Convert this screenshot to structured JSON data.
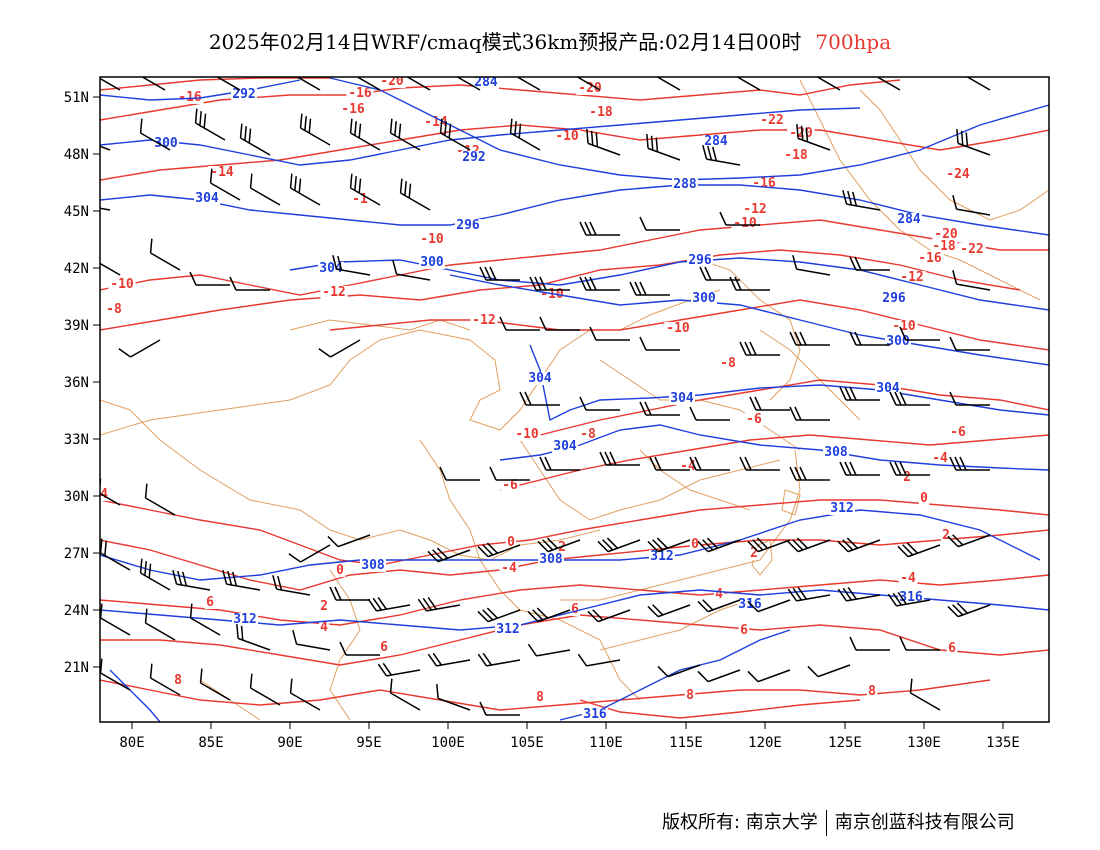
{
  "title": {
    "main": "2025年02月14日WRF/cmaq模式36km预报产品:02月14日00时",
    "level": "700hpa"
  },
  "colors": {
    "temperature_contour": "#e8382f",
    "height_contour": "#1e3fdc",
    "boundary": "#e0a060",
    "wind_barb": "#000000",
    "level_text": "#e8382f"
  },
  "map": {
    "lon_labels": [
      "80E",
      "85E",
      "90E",
      "95E",
      "100E",
      "105E",
      "110E",
      "115E",
      "120E",
      "125E",
      "130E",
      "135E"
    ],
    "lat_labels": [
      "51N",
      "48N",
      "45N",
      "42N",
      "39N",
      "36N",
      "33N",
      "30N",
      "27N",
      "24N",
      "21N"
    ],
    "temperature_labels": [
      "-20",
      "-16",
      "-18",
      "-14",
      "-12",
      "-10",
      "-8",
      "-6",
      "-4",
      "-2",
      "0",
      "2",
      "4",
      "6",
      "8",
      "-24",
      "-22"
    ],
    "height_labels": [
      "284",
      "288",
      "292",
      "296",
      "300",
      "304",
      "308",
      "312",
      "316"
    ]
  },
  "footer": {
    "left": "版权所有: 南京大学",
    "right": "南京创蓝科技有限公司"
  }
}
